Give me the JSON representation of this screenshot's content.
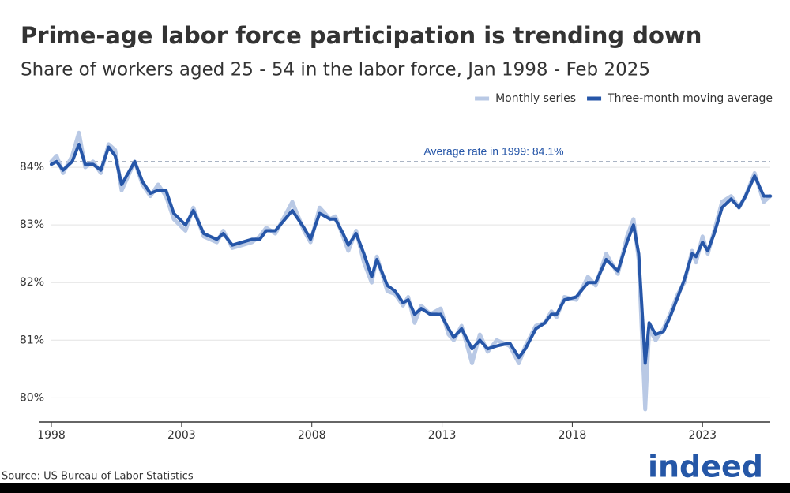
{
  "chart_data": {
    "type": "line",
    "title": "Prime-age labor force participation is trending down",
    "subtitle": "Share of workers aged 25 - 54 in the labor force, Jan 1998 - Feb 2025",
    "source": "Source: US Bureau of Labor Statistics",
    "logo": "indeed",
    "legend": "top-right",
    "grid": true,
    "reference_line": {
      "value": 84.1,
      "label": "Average rate in 1999: 84.1%",
      "color": "#aab4c4"
    },
    "x": [
      1998.0,
      1998.2,
      1998.45,
      1998.8,
      1999.06,
      1999.3,
      1999.6,
      1999.9,
      2000.2,
      2000.45,
      2000.7,
      2001.2,
      2001.5,
      2001.8,
      2002.1,
      2002.4,
      2002.7,
      2003.15,
      2003.45,
      2003.85,
      2004.35,
      2004.6,
      2004.95,
      2005.7,
      2006.0,
      2006.25,
      2006.6,
      2007.25,
      2007.7,
      2007.95,
      2008.3,
      2008.7,
      2008.9,
      2009.2,
      2009.4,
      2009.7,
      2010.0,
      2010.3,
      2010.5,
      2010.9,
      2011.2,
      2011.5,
      2011.7,
      2011.95,
      2012.2,
      2012.55,
      2012.95,
      2013.25,
      2013.45,
      2013.75,
      2014.15,
      2014.45,
      2014.75,
      2015.1,
      2015.6,
      2015.95,
      2016.2,
      2016.6,
      2016.95,
      2017.2,
      2017.4,
      2017.7,
      2018.15,
      2018.6,
      2018.9,
      2019.3,
      2019.75,
      2020.1,
      2020.35,
      2020.55,
      2020.8,
      2020.95,
      2021.2,
      2021.5,
      2021.75,
      2022.05,
      2022.3,
      2022.6,
      2022.75,
      2023.0,
      2023.2,
      2023.45,
      2023.75,
      2024.1,
      2024.4,
      2024.65,
      2025.0,
      2025.35,
      2025.6
    ],
    "series": [
      {
        "name": "Monthly series",
        "color": "#b9c9e5",
        "width": 5,
        "values": [
          84.1,
          84.2,
          83.9,
          84.2,
          84.6,
          84.0,
          84.1,
          83.9,
          84.4,
          84.3,
          83.6,
          84.1,
          83.7,
          83.5,
          83.7,
          83.5,
          83.1,
          82.9,
          83.3,
          82.8,
          82.7,
          82.9,
          82.6,
          82.7,
          82.8,
          82.95,
          82.85,
          83.4,
          82.9,
          82.7,
          83.3,
          83.1,
          83.15,
          82.8,
          82.55,
          82.9,
          82.35,
          82.0,
          82.45,
          81.85,
          81.8,
          81.6,
          81.75,
          81.3,
          81.6,
          81.45,
          81.55,
          81.1,
          81.0,
          81.25,
          80.6,
          81.1,
          80.8,
          81.0,
          80.9,
          80.6,
          80.9,
          81.25,
          81.3,
          81.5,
          81.4,
          81.75,
          81.7,
          82.1,
          81.95,
          82.5,
          82.15,
          82.8,
          83.1,
          82.4,
          79.8,
          81.2,
          81.0,
          81.2,
          81.45,
          81.8,
          82.0,
          82.55,
          82.35,
          82.8,
          82.5,
          82.9,
          83.4,
          83.5,
          83.3,
          83.5,
          83.9,
          83.4,
          83.5
        ]
      },
      {
        "name": "Three-month moving average",
        "color": "#2656a8",
        "width": 4,
        "values": [
          84.05,
          84.1,
          83.95,
          84.1,
          84.4,
          84.05,
          84.05,
          83.95,
          84.35,
          84.2,
          83.7,
          84.1,
          83.75,
          83.55,
          83.6,
          83.6,
          83.2,
          83.0,
          83.25,
          82.85,
          82.75,
          82.85,
          82.65,
          82.75,
          82.75,
          82.9,
          82.9,
          83.25,
          82.95,
          82.75,
          83.2,
          83.1,
          83.1,
          82.85,
          82.65,
          82.85,
          82.5,
          82.1,
          82.4,
          81.95,
          81.85,
          81.65,
          81.7,
          81.45,
          81.55,
          81.45,
          81.45,
          81.2,
          81.05,
          81.2,
          80.85,
          81.0,
          80.85,
          80.9,
          80.95,
          80.7,
          80.85,
          81.2,
          81.3,
          81.45,
          81.45,
          81.7,
          81.75,
          82.0,
          82.0,
          82.4,
          82.2,
          82.7,
          83.0,
          82.5,
          80.6,
          81.3,
          81.1,
          81.15,
          81.4,
          81.75,
          82.05,
          82.5,
          82.45,
          82.7,
          82.55,
          82.85,
          83.3,
          83.45,
          83.3,
          83.5,
          83.85,
          83.5,
          83.5
        ]
      }
    ],
    "xlim": [
      1998,
      2025.6
    ],
    "xticks": [
      1998,
      2003,
      2008,
      2013,
      2018,
      2023
    ],
    "ylim": [
      79.58,
      84.85
    ],
    "yticks": [
      {
        "value": 80,
        "label": "80%"
      },
      {
        "value": 81,
        "label": "81%"
      },
      {
        "value": 82,
        "label": "82%"
      },
      {
        "value": 83,
        "label": "83%"
      },
      {
        "value": 84,
        "label": "84%"
      }
    ]
  }
}
